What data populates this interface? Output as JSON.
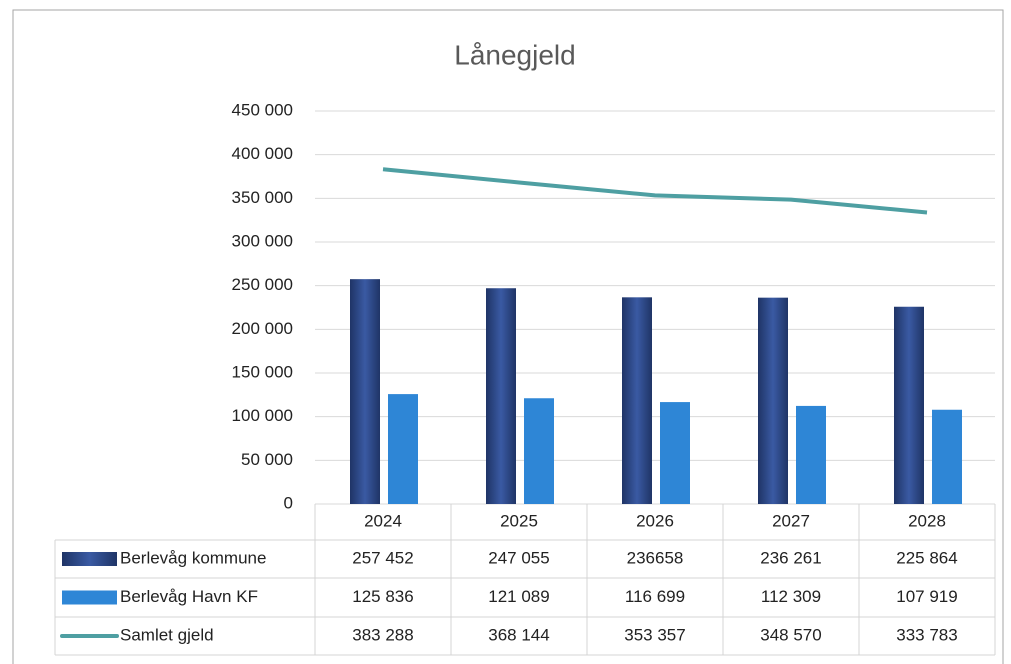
{
  "chart_data": {
    "type": "bar",
    "title": "Lånegjeld",
    "categories": [
      "2024",
      "2025",
      "2026",
      "2027",
      "2028"
    ],
    "series": [
      {
        "name": "Berlevåg kommune",
        "type": "bar",
        "color": "#2f4b8c",
        "values": [
          257452,
          247055,
          236658,
          236261,
          225864
        ],
        "value_labels": [
          "257 452",
          "247 055",
          "236658",
          "236 261",
          "225 864"
        ]
      },
      {
        "name": "Berlevåg Havn KF",
        "type": "bar",
        "color": "#2e86d6",
        "values": [
          125836,
          121089,
          116699,
          112309,
          107919
        ],
        "value_labels": [
          "125 836",
          "121 089",
          "116 699",
          "112 309",
          "107 919"
        ]
      },
      {
        "name": "Samlet gjeld",
        "type": "line",
        "color": "#4e9fa2",
        "values": [
          383288,
          368144,
          353357,
          348570,
          333783
        ],
        "value_labels": [
          "383 288",
          "368 144",
          "353 357",
          "348 570",
          "333 783"
        ]
      }
    ],
    "ylim": [
      0,
      450000
    ],
    "yticks": [
      0,
      {
        "value": 50000,
        "label": "50 000"
      },
      {
        "value": 100000,
        "label": "100 000"
      },
      {
        "value": 150000,
        "label": "150 000"
      },
      {
        "value": 200000,
        "label": "200 000"
      },
      {
        "value": 250000,
        "label": "250 000"
      },
      {
        "value": 300000,
        "label": "300 000"
      },
      {
        "value": 350000,
        "label": "350 000"
      },
      {
        "value": 400000,
        "label": "400 000"
      },
      {
        "value": 450000,
        "label": "450 000"
      }
    ],
    "grid": true,
    "data_table": true
  }
}
